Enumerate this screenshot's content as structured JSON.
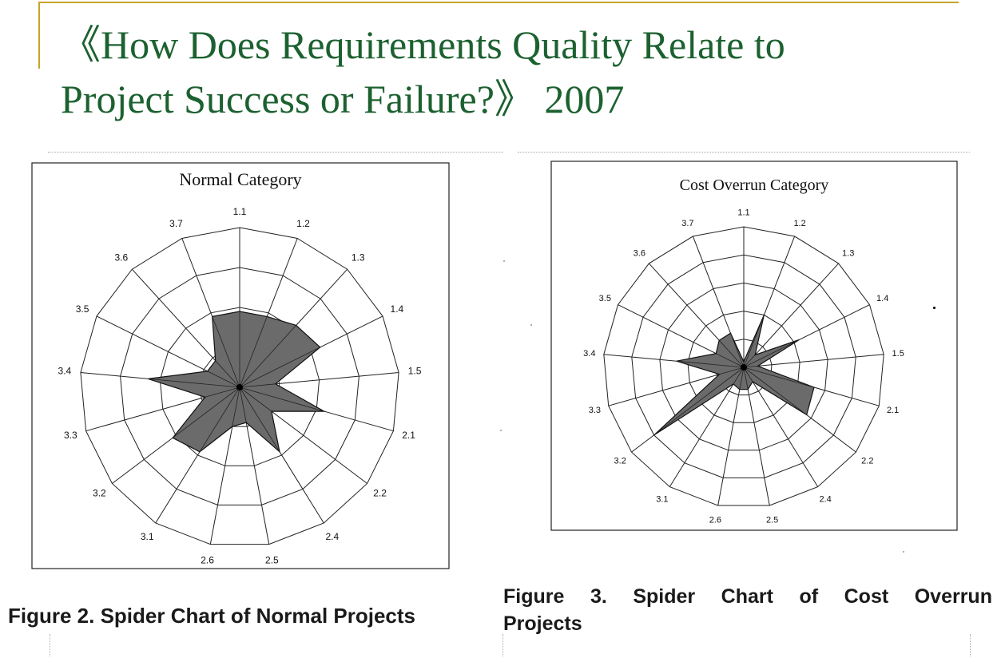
{
  "slide": {
    "title_line1": "《How Does Requirements Quality Relate to",
    "title_line2": "Project Success or Failure?》 2007"
  },
  "figures": [
    {
      "caption": "Figure 2. Spider Chart of Normal Projects"
    },
    {
      "caption_words": [
        "Figure",
        "3.",
        "Spider",
        "Chart",
        "of",
        "Cost",
        "Overrun"
      ],
      "caption_line2": "Projects"
    }
  ],
  "colors": {
    "title": "#1c6130",
    "accent_rule": "#c8a428",
    "polygon_fill": "#6b6b6b",
    "grid": "#222222"
  },
  "chart_data": [
    {
      "type": "radar",
      "title": "Normal Category",
      "categories": [
        "1.1",
        "1.2",
        "1.3",
        "1.4",
        "1.5",
        "2.1",
        "2.2",
        "2.4",
        "2.5",
        "2.6",
        "3.1",
        "3.2",
        "3.3",
        "3.4",
        "3.5",
        "3.6",
        "3.7"
      ],
      "rings": 4,
      "range": [
        0,
        4
      ],
      "values": [
        1.9,
        1.9,
        2.1,
        2.25,
        0.9,
        2.2,
        1.0,
        1.9,
        0.9,
        1.0,
        1.9,
        2.1,
        0.9,
        2.3,
        0.9,
        0.9,
        1.9
      ]
    },
    {
      "type": "radar",
      "title": "Cost Overrun Category",
      "categories": [
        "1.1",
        "1.2",
        "1.3",
        "1.4",
        "1.5",
        "2.1",
        "2.2",
        "2.4",
        "2.5",
        "2.6",
        "3.1",
        "3.2",
        "3.3",
        "3.4",
        "3.5",
        "3.6",
        "3.7"
      ],
      "rings": 5,
      "range": [
        0,
        5
      ],
      "values": [
        0.2,
        2.0,
        0.6,
        2.2,
        0.5,
        2.6,
        2.8,
        0.6,
        0.8,
        0.8,
        0.7,
        4.0,
        0.9,
        2.4,
        1.1,
        1.3,
        1.3
      ]
    }
  ]
}
